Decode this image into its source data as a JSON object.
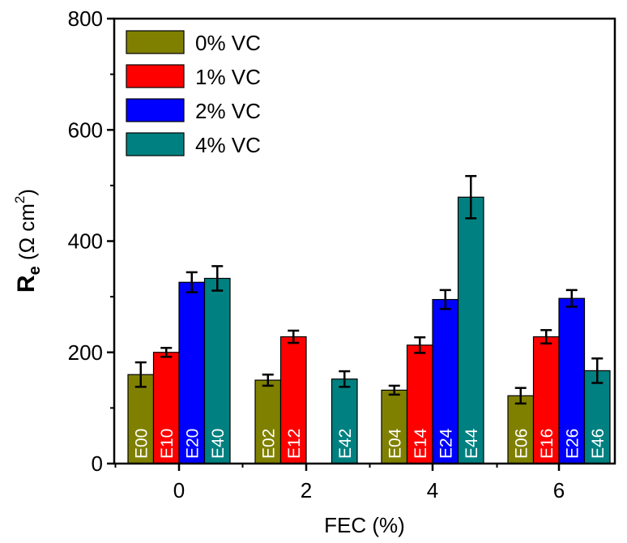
{
  "chart_data": {
    "type": "bar",
    "categories": [
      "0",
      "2",
      "4",
      "6"
    ],
    "xlabel": "FEC (%)",
    "ylabel": {
      "main": "R",
      "sub": "e",
      "open": " (Ω cm",
      "sup": "2",
      "close": ")"
    },
    "ylim": [
      0,
      800
    ],
    "yticks": [
      0,
      200,
      400,
      600,
      800
    ],
    "grid": false,
    "legend_position": "top-left",
    "series": [
      {
        "name": "0% VC",
        "color": "#808000",
        "values": [
          160,
          150,
          132,
          122
        ],
        "errors": [
          22,
          10,
          8,
          14
        ],
        "labels": [
          "E00",
          "E02",
          "E04",
          "E06"
        ]
      },
      {
        "name": "1% VC",
        "color": "#ff0000",
        "values": [
          200,
          228,
          213,
          228
        ],
        "errors": [
          8,
          11,
          14,
          12
        ],
        "labels": [
          "E10",
          "E12",
          "E14",
          "E16"
        ]
      },
      {
        "name": "2% VC",
        "color": "#0000ff",
        "values": [
          326,
          null,
          295,
          297
        ],
        "errors": [
          18,
          null,
          17,
          15
        ],
        "labels": [
          "E20",
          "",
          "E24",
          "E26"
        ]
      },
      {
        "name": "4% VC",
        "color": "#008080",
        "values": [
          333,
          152,
          479,
          167
        ],
        "errors": [
          22,
          14,
          38,
          22
        ],
        "labels": [
          "E40",
          "E42",
          "E44",
          "E46"
        ]
      }
    ]
  }
}
